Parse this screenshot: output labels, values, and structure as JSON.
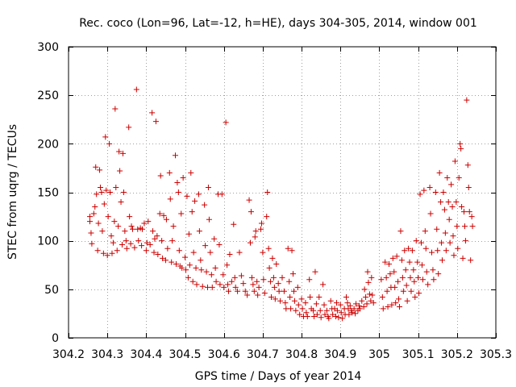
{
  "colors": {
    "points": "#cc0000",
    "frame": "#000000",
    "grid": "#a0a0a0",
    "background": "#ffffff"
  },
  "chart_data": {
    "type": "scatter",
    "title": "Rec. coco (Lon=96, Lat=-12, h=HE), days 304-305, 2014, window 001",
    "xlabel": "GPS time / Days of year 2014",
    "ylabel": "STEC from uqrg / TECUs",
    "xlim": [
      304.2,
      305.3
    ],
    "ylim": [
      0,
      300
    ],
    "xticks": [
      304.2,
      304.3,
      304.4,
      304.5,
      304.6,
      304.7,
      304.8,
      304.9,
      305,
      305.1,
      305.2,
      305.3
    ],
    "xtick_labels": [
      "304.2",
      "304.3",
      "304.4",
      "304.5",
      "304.6",
      "304.7",
      "304.8",
      "304.9",
      "305",
      "305.1",
      "305.2",
      "305.3"
    ],
    "yticks": [
      0,
      50,
      100,
      150,
      200,
      250,
      300
    ],
    "ytick_labels": [
      "0",
      "50",
      "100",
      "150",
      "200",
      "250",
      "300"
    ],
    "grid": true,
    "legend": "none",
    "marker": "plus",
    "points": [
      [
        304.255,
        125
      ],
      [
        304.255,
        120
      ],
      [
        304.258,
        108
      ],
      [
        304.26,
        97
      ],
      [
        304.265,
        128
      ],
      [
        304.268,
        135
      ],
      [
        304.27,
        176
      ],
      [
        304.272,
        148
      ],
      [
        304.275,
        90
      ],
      [
        304.277,
        118
      ],
      [
        304.28,
        173
      ],
      [
        304.282,
        155
      ],
      [
        304.285,
        150
      ],
      [
        304.287,
        110
      ],
      [
        304.29,
        87
      ],
      [
        304.292,
        138
      ],
      [
        304.295,
        207
      ],
      [
        304.297,
        152
      ],
      [
        304.3,
        85
      ],
      [
        304.302,
        125
      ],
      [
        304.305,
        200
      ],
      [
        304.307,
        150
      ],
      [
        304.31,
        105
      ],
      [
        304.312,
        87
      ],
      [
        304.315,
        98
      ],
      [
        304.318,
        120
      ],
      [
        304.32,
        236
      ],
      [
        304.322,
        155
      ],
      [
        304.325,
        90
      ],
      [
        304.328,
        115
      ],
      [
        304.33,
        192
      ],
      [
        304.332,
        172
      ],
      [
        304.335,
        140
      ],
      [
        304.338,
        96
      ],
      [
        304.34,
        190
      ],
      [
        304.342,
        150
      ],
      [
        304.345,
        110
      ],
      [
        304.348,
        100
      ],
      [
        304.35,
        92
      ],
      [
        304.355,
        217
      ],
      [
        304.357,
        125
      ],
      [
        304.36,
        97
      ],
      [
        304.362,
        115
      ],
      [
        304.365,
        112
      ],
      [
        304.37,
        93
      ],
      [
        304.375,
        256
      ],
      [
        304.378,
        112
      ],
      [
        304.38,
        100
      ],
      [
        304.385,
        113
      ],
      [
        304.388,
        95
      ],
      [
        304.39,
        112
      ],
      [
        304.395,
        118
      ],
      [
        304.4,
        90
      ],
      [
        304.402,
        98
      ],
      [
        304.405,
        120
      ],
      [
        304.41,
        96
      ],
      [
        304.415,
        232
      ],
      [
        304.417,
        110
      ],
      [
        304.42,
        88
      ],
      [
        304.422,
        102
      ],
      [
        304.425,
        223
      ],
      [
        304.428,
        105
      ],
      [
        304.43,
        86
      ],
      [
        304.435,
        128
      ],
      [
        304.437,
        167
      ],
      [
        304.44,
        100
      ],
      [
        304.442,
        82
      ],
      [
        304.445,
        126
      ],
      [
        304.45,
        80
      ],
      [
        304.452,
        122
      ],
      [
        304.455,
        92
      ],
      [
        304.46,
        170
      ],
      [
        304.462,
        143
      ],
      [
        304.465,
        78
      ],
      [
        304.467,
        100
      ],
      [
        304.47,
        115
      ],
      [
        304.475,
        188
      ],
      [
        304.477,
        76
      ],
      [
        304.48,
        160
      ],
      [
        304.483,
        150
      ],
      [
        304.485,
        90
      ],
      [
        304.487,
        74
      ],
      [
        304.49,
        128
      ],
      [
        304.492,
        72
      ],
      [
        304.495,
        165
      ],
      [
        304.5,
        83
      ],
      [
        304.502,
        70
      ],
      [
        304.505,
        146
      ],
      [
        304.508,
        62
      ],
      [
        304.51,
        107
      ],
      [
        304.512,
        75
      ],
      [
        304.515,
        170
      ],
      [
        304.518,
        130
      ],
      [
        304.52,
        58
      ],
      [
        304.522,
        88
      ],
      [
        304.525,
        141
      ],
      [
        304.528,
        72
      ],
      [
        304.53,
        55
      ],
      [
        304.535,
        148
      ],
      [
        304.537,
        110
      ],
      [
        304.54,
        80
      ],
      [
        304.542,
        70
      ],
      [
        304.545,
        53
      ],
      [
        304.55,
        137
      ],
      [
        304.552,
        95
      ],
      [
        304.555,
        68
      ],
      [
        304.558,
        52
      ],
      [
        304.56,
        155
      ],
      [
        304.562,
        122
      ],
      [
        304.565,
        88
      ],
      [
        304.568,
        65
      ],
      [
        304.57,
        52
      ],
      [
        304.575,
        102
      ],
      [
        304.578,
        72
      ],
      [
        304.58,
        58
      ],
      [
        304.585,
        148
      ],
      [
        304.588,
        96
      ],
      [
        304.59,
        55
      ],
      [
        304.595,
        148
      ],
      [
        304.598,
        65
      ],
      [
        304.6,
        52
      ],
      [
        304.605,
        222
      ],
      [
        304.608,
        75
      ],
      [
        304.61,
        55
      ],
      [
        304.612,
        48
      ],
      [
        304.615,
        86
      ],
      [
        304.62,
        58
      ],
      [
        304.625,
        117
      ],
      [
        304.628,
        62
      ],
      [
        304.63,
        52
      ],
      [
        304.635,
        48
      ],
      [
        304.64,
        88
      ],
      [
        304.645,
        64
      ],
      [
        304.65,
        56
      ],
      [
        304.655,
        48
      ],
      [
        304.66,
        44
      ],
      [
        304.665,
        142
      ],
      [
        304.668,
        98
      ],
      [
        304.67,
        130
      ],
      [
        304.672,
        62
      ],
      [
        304.675,
        55
      ],
      [
        304.678,
        48
      ],
      [
        304.68,
        104
      ],
      [
        304.682,
        110
      ],
      [
        304.685,
        58
      ],
      [
        304.687,
        44
      ],
      [
        304.69,
        52
      ],
      [
        304.695,
        112
      ],
      [
        304.697,
        118
      ],
      [
        304.7,
        88
      ],
      [
        304.702,
        60
      ],
      [
        304.705,
        46
      ],
      [
        304.71,
        125
      ],
      [
        304.712,
        150
      ],
      [
        304.715,
        92
      ],
      [
        304.717,
        72
      ],
      [
        304.72,
        58
      ],
      [
        304.722,
        42
      ],
      [
        304.725,
        82
      ],
      [
        304.728,
        62
      ],
      [
        304.73,
        52
      ],
      [
        304.732,
        40
      ],
      [
        304.735,
        76
      ],
      [
        304.74,
        56
      ],
      [
        304.742,
        48
      ],
      [
        304.745,
        38
      ],
      [
        304.75,
        62
      ],
      [
        304.755,
        48
      ],
      [
        304.758,
        36
      ],
      [
        304.76,
        30
      ],
      [
        304.765,
        92
      ],
      [
        304.768,
        58
      ],
      [
        304.77,
        42
      ],
      [
        304.772,
        30
      ],
      [
        304.775,
        90
      ],
      [
        304.778,
        66
      ],
      [
        304.78,
        48
      ],
      [
        304.782,
        38
      ],
      [
        304.785,
        28
      ],
      [
        304.79,
        52
      ],
      [
        304.792,
        34
      ],
      [
        304.795,
        24
      ],
      [
        304.8,
        40
      ],
      [
        304.802,
        30
      ],
      [
        304.805,
        22
      ],
      [
        304.81,
        36
      ],
      [
        304.812,
        26
      ],
      [
        304.815,
        22
      ],
      [
        304.82,
        60
      ],
      [
        304.822,
        42
      ],
      [
        304.825,
        30
      ],
      [
        304.83,
        28
      ],
      [
        304.832,
        22
      ],
      [
        304.835,
        68
      ],
      [
        304.838,
        35
      ],
      [
        304.84,
        24
      ],
      [
        304.845,
        42
      ],
      [
        304.848,
        28
      ],
      [
        304.85,
        21
      ],
      [
        304.855,
        55
      ],
      [
        304.858,
        34
      ],
      [
        304.86,
        24
      ],
      [
        304.865,
        28
      ],
      [
        304.868,
        22
      ],
      [
        304.87,
        20
      ],
      [
        304.875,
        38
      ],
      [
        304.878,
        30
      ],
      [
        304.88,
        24
      ],
      [
        304.885,
        30
      ],
      [
        304.888,
        22
      ],
      [
        304.89,
        36
      ],
      [
        304.892,
        28
      ],
      [
        304.895,
        21
      ],
      [
        304.9,
        34
      ],
      [
        304.902,
        26
      ],
      [
        304.905,
        20
      ],
      [
        304.91,
        30
      ],
      [
        304.912,
        24
      ],
      [
        304.915,
        42
      ],
      [
        304.918,
        36
      ],
      [
        304.92,
        30
      ],
      [
        304.922,
        24
      ],
      [
        304.925,
        33
      ],
      [
        304.928,
        28
      ],
      [
        304.93,
        26
      ],
      [
        304.935,
        30
      ],
      [
        304.938,
        25
      ],
      [
        304.94,
        35
      ],
      [
        304.945,
        28
      ],
      [
        304.948,
        33
      ],
      [
        304.95,
        30
      ],
      [
        304.955,
        38
      ],
      [
        304.96,
        32
      ],
      [
        304.962,
        50
      ],
      [
        304.965,
        42
      ],
      [
        304.968,
        35
      ],
      [
        304.97,
        68
      ],
      [
        304.972,
        57
      ],
      [
        304.975,
        45
      ],
      [
        304.978,
        38
      ],
      [
        304.98,
        62
      ],
      [
        304.982,
        44
      ],
      [
        304.985,
        36
      ],
      [
        305.005,
        60
      ],
      [
        305.008,
        42
      ],
      [
        305.01,
        30
      ],
      [
        305.015,
        78
      ],
      [
        305.018,
        62
      ],
      [
        305.02,
        48
      ],
      [
        305.022,
        32
      ],
      [
        305.025,
        76
      ],
      [
        305.028,
        66
      ],
      [
        305.03,
        52
      ],
      [
        305.032,
        34
      ],
      [
        305.035,
        82
      ],
      [
        305.038,
        68
      ],
      [
        305.04,
        52
      ],
      [
        305.042,
        36
      ],
      [
        305.045,
        84
      ],
      [
        305.048,
        58
      ],
      [
        305.05,
        40
      ],
      [
        305.052,
        32
      ],
      [
        305.055,
        110
      ],
      [
        305.058,
        80
      ],
      [
        305.06,
        62
      ],
      [
        305.062,
        48
      ],
      [
        305.065,
        90
      ],
      [
        305.068,
        70
      ],
      [
        305.07,
        54
      ],
      [
        305.072,
        38
      ],
      [
        305.075,
        92
      ],
      [
        305.078,
        78
      ],
      [
        305.08,
        62
      ],
      [
        305.082,
        48
      ],
      [
        305.085,
        90
      ],
      [
        305.088,
        70
      ],
      [
        305.09,
        58
      ],
      [
        305.092,
        42
      ],
      [
        305.095,
        100
      ],
      [
        305.098,
        78
      ],
      [
        305.1,
        62
      ],
      [
        305.102,
        46
      ],
      [
        305.105,
        148
      ],
      [
        305.108,
        98
      ],
      [
        305.11,
        75
      ],
      [
        305.112,
        60
      ],
      [
        305.115,
        152
      ],
      [
        305.118,
        110
      ],
      [
        305.12,
        92
      ],
      [
        305.122,
        68
      ],
      [
        305.125,
        55
      ],
      [
        305.13,
        155
      ],
      [
        305.132,
        128
      ],
      [
        305.135,
        88
      ],
      [
        305.138,
        70
      ],
      [
        305.14,
        60
      ],
      [
        305.145,
        150
      ],
      [
        305.148,
        112
      ],
      [
        305.15,
        90
      ],
      [
        305.152,
        66
      ],
      [
        305.155,
        170
      ],
      [
        305.158,
        140
      ],
      [
        305.16,
        98
      ],
      [
        305.162,
        80
      ],
      [
        305.165,
        150
      ],
      [
        305.168,
        132
      ],
      [
        305.17,
        108
      ],
      [
        305.172,
        90
      ],
      [
        305.175,
        165
      ],
      [
        305.178,
        140
      ],
      [
        305.18,
        122
      ],
      [
        305.182,
        98
      ],
      [
        305.185,
        158
      ],
      [
        305.188,
        135
      ],
      [
        305.19,
        105
      ],
      [
        305.192,
        85
      ],
      [
        305.195,
        182
      ],
      [
        305.198,
        140
      ],
      [
        305.2,
        115
      ],
      [
        305.202,
        92
      ],
      [
        305.205,
        165
      ],
      [
        305.208,
        200
      ],
      [
        305.21,
        195
      ],
      [
        305.212,
        135
      ],
      [
        305.215,
        82
      ],
      [
        305.218,
        130
      ],
      [
        305.22,
        115
      ],
      [
        305.222,
        100
      ],
      [
        305.225,
        245
      ],
      [
        305.228,
        178
      ],
      [
        305.23,
        155
      ],
      [
        305.232,
        130
      ],
      [
        305.235,
        80
      ],
      [
        305.238,
        125
      ],
      [
        305.24,
        115
      ]
    ]
  }
}
